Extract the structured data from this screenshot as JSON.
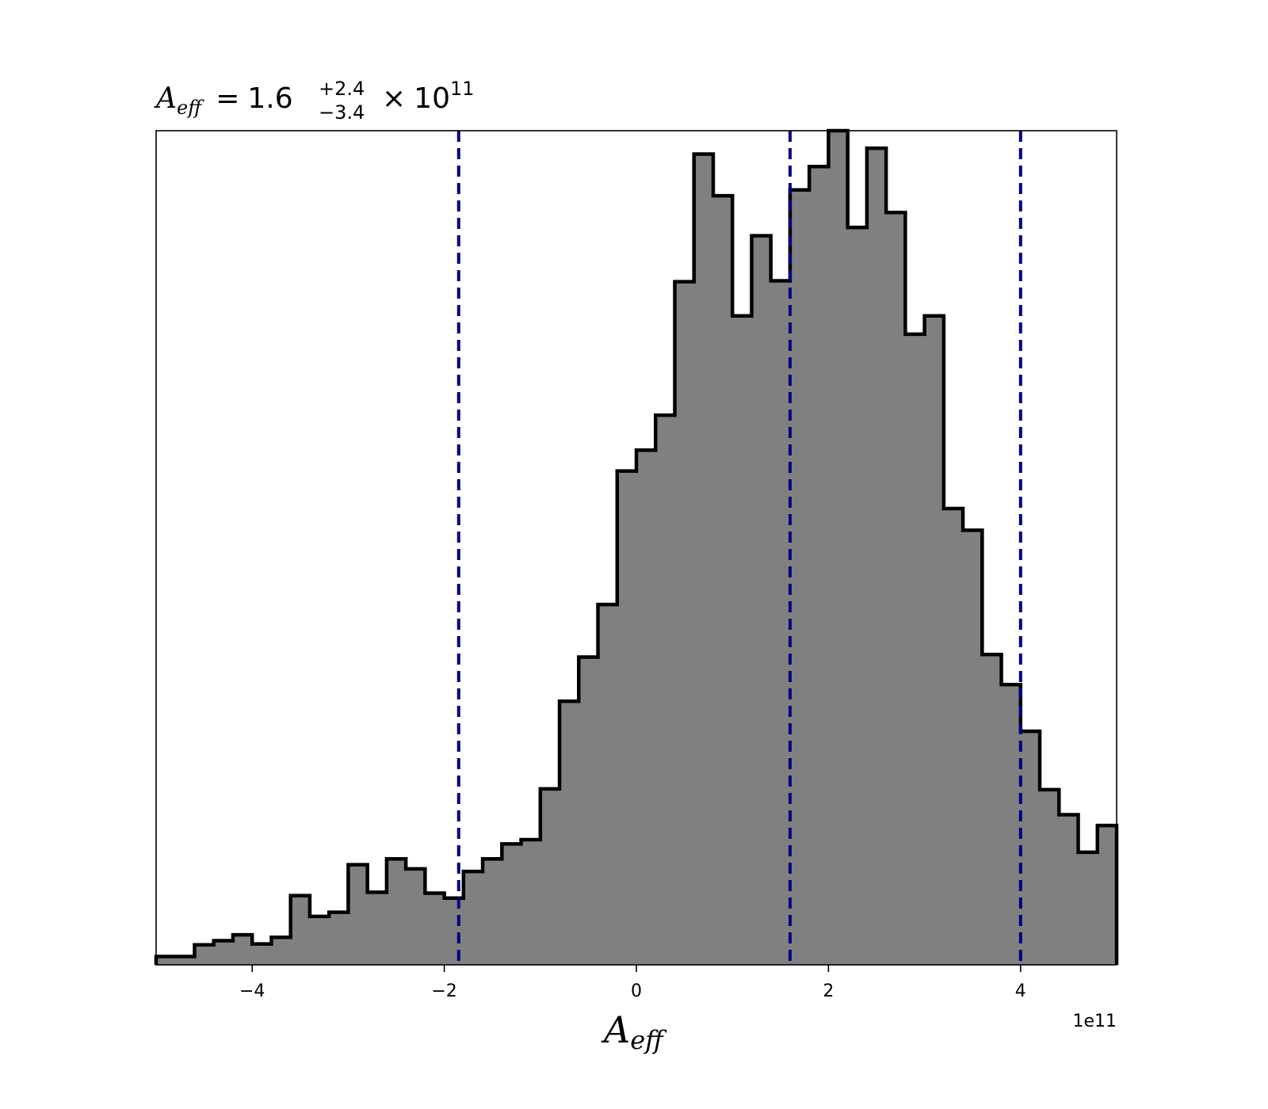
{
  "chart_data": {
    "type": "histogram",
    "title": {
      "symbol": "A",
      "subscript": "eff",
      "equals": "=",
      "value": "1.6",
      "upper": "+2.4",
      "lower": "−3.4",
      "times": "×",
      "base": "10",
      "exponent": "11"
    },
    "xlabel": {
      "symbol": "A",
      "subscript": "eff"
    },
    "x_offset_label": "1e11",
    "xlim": [
      -5.0,
      5.0
    ],
    "ylim": [
      0,
      1.0
    ],
    "x_ticks": [
      -4,
      -2,
      0,
      2,
      4
    ],
    "x_tick_labels": [
      "−4",
      "−2",
      "0",
      "2",
      "4"
    ],
    "show_y_ticks": false,
    "grid": false,
    "bin_edges": [
      -5.0,
      -4.6,
      -4.4,
      -4.2,
      -4.0,
      -3.8,
      -3.6,
      -3.4,
      -3.2,
      -3.0,
      -2.8,
      -2.6,
      -2.4,
      -2.2,
      -2.0,
      -1.8,
      -1.6,
      -1.4,
      -1.2,
      -1.0,
      -0.8,
      -0.6,
      -0.4,
      -0.2,
      0.0,
      0.2,
      0.4,
      0.6,
      0.8,
      1.0,
      1.2,
      1.4,
      1.6,
      1.8,
      2.0,
      2.2,
      2.4,
      2.6,
      2.8,
      3.0,
      3.2,
      3.4,
      3.6,
      3.8,
      4.0,
      4.2,
      4.4,
      4.6,
      4.8,
      5.0
    ],
    "bin_heights": [
      0.01,
      0.024,
      0.029,
      0.036,
      0.025,
      0.033,
      0.083,
      0.058,
      0.063,
      0.12,
      0.087,
      0.127,
      0.115,
      0.086,
      0.08,
      0.112,
      0.127,
      0.145,
      0.15,
      0.211,
      0.316,
      0.369,
      0.432,
      0.592,
      0.617,
      0.659,
      0.819,
      0.972,
      0.922,
      0.778,
      0.874,
      0.82,
      0.929,
      0.957,
      1.0,
      0.884,
      0.979,
      0.902,
      0.756,
      0.778,
      0.547,
      0.521,
      0.372,
      0.336,
      0.28,
      0.21,
      0.18,
      0.135,
      0.167
    ],
    "fill_color": "#808080",
    "edge_color": "#000000",
    "quantile_lines": [
      -1.85,
      1.6,
      4.0
    ],
    "quantile_color": "#000080"
  }
}
